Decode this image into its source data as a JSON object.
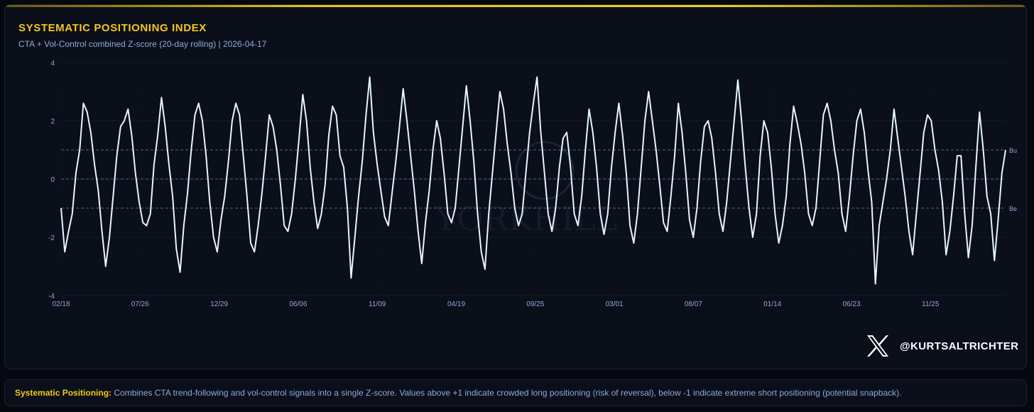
{
  "header": {
    "title": "SYSTEMATIC POSITIONING INDEX",
    "subtitle": "CTA + Vol-Control combined Z-score (20-day rolling) | 2026-04-17"
  },
  "watermark": {
    "text": "YORKHILL"
  },
  "branding": {
    "icon": "x-logo-icon",
    "handle": "@KURTSALTRICHTER"
  },
  "footer": {
    "label": "Systematic Positioning:",
    "text": " Combines CTA trend-following and vol-control signals into a single Z-score. Values above +1 indicate crowded long positioning (risk of reversal), below -1 indicate extreme short positioning (potential snapback)."
  },
  "colors": {
    "accent": "#f4c81c",
    "line": "#e6f6ff",
    "label": "#8fa8de",
    "reference": "#4e6890"
  },
  "chart_data": {
    "type": "line",
    "title": "SYSTEMATIC POSITIONING INDEX",
    "subtitle": "CTA + Vol-Control combined Z-score (20-day rolling) | 2026-04-17",
    "ylim": [
      -4,
      4
    ],
    "yticks": [
      4,
      2,
      0,
      -2,
      -4
    ],
    "xtick_labels": [
      "02/18",
      "07/26",
      "12/29",
      "06/06",
      "11/09",
      "04/19",
      "09/25",
      "03/01",
      "08/07",
      "01/14",
      "06/23",
      "11/25"
    ],
    "grid": true,
    "reference_lines": [
      {
        "value": 1,
        "label": "Bu"
      },
      {
        "value": 0,
        "label": ""
      },
      {
        "value": -1,
        "label": "Be"
      }
    ],
    "series": [
      {
        "values": [
          -1.0,
          -2.5,
          -1.8,
          -1.2,
          0.2,
          1.0,
          2.6,
          2.3,
          1.6,
          0.5,
          -0.4,
          -1.8,
          -3.0,
          -2.0,
          -0.6,
          0.8,
          1.8,
          2.0,
          2.4,
          1.5,
          0.2,
          -0.8,
          -1.5,
          -1.6,
          -1.2,
          0.5,
          1.5,
          2.8,
          1.8,
          0.5,
          -0.6,
          -2.4,
          -3.2,
          -1.6,
          -0.5,
          1.0,
          2.2,
          2.6,
          2.0,
          0.8,
          -0.8,
          -2.0,
          -2.5,
          -1.4,
          -0.6,
          0.6,
          2.0,
          2.6,
          2.2,
          0.8,
          -0.6,
          -2.2,
          -2.5,
          -1.6,
          -0.5,
          0.8,
          2.2,
          1.8,
          1.0,
          -0.2,
          -1.6,
          -1.8,
          -1.2,
          0.0,
          1.4,
          2.9,
          2.0,
          0.4,
          -0.8,
          -1.7,
          -1.2,
          -0.2,
          1.5,
          2.5,
          2.2,
          0.8,
          0.4,
          -1.0,
          -3.4,
          -2.0,
          -0.6,
          0.6,
          2.2,
          3.5,
          1.6,
          0.5,
          -0.4,
          -1.3,
          -1.6,
          -0.5,
          0.6,
          1.8,
          3.1,
          2.0,
          0.8,
          -0.4,
          -1.8,
          -2.9,
          -1.5,
          -0.4,
          1.0,
          2.0,
          1.4,
          0.2,
          -1.2,
          -1.5,
          -1.0,
          0.4,
          1.8,
          3.2,
          2.0,
          0.6,
          -1.2,
          -2.5,
          -3.1,
          -1.2,
          0.2,
          1.6,
          3.0,
          2.4,
          1.2,
          0.2,
          -1.0,
          -1.6,
          -1.2,
          0.2,
          1.6,
          2.6,
          3.5,
          1.6,
          0.2,
          -1.2,
          -1.8,
          -1.0,
          0.4,
          1.4,
          1.6,
          0.4,
          -1.2,
          -1.6,
          -0.6,
          1.0,
          2.4,
          1.6,
          0.4,
          -1.2,
          -1.9,
          -1.2,
          0.4,
          1.6,
          2.6,
          1.5,
          0.2,
          -1.6,
          -2.2,
          -1.2,
          0.4,
          2.0,
          3.0,
          2.0,
          1.0,
          -0.2,
          -1.5,
          -1.8,
          -0.6,
          0.8,
          2.6,
          1.6,
          0.2,
          -1.4,
          -2.0,
          -1.0,
          0.6,
          1.8,
          2.0,
          1.4,
          0.2,
          -1.2,
          -1.8,
          -0.8,
          0.6,
          2.0,
          3.4,
          2.0,
          0.4,
          -1.0,
          -2.0,
          -1.2,
          0.8,
          2.0,
          1.6,
          0.4,
          -1.2,
          -2.2,
          -1.6,
          -0.6,
          1.2,
          2.5,
          1.9,
          1.2,
          0.2,
          -1.2,
          -1.6,
          -1.0,
          0.6,
          2.2,
          2.6,
          2.0,
          1.0,
          0.2,
          -1.2,
          -1.8,
          -0.6,
          0.8,
          2.0,
          2.4,
          1.6,
          0.3,
          -0.8,
          -3.6,
          -1.6,
          -0.8,
          0.0,
          1.0,
          2.4,
          1.4,
          0.4,
          -0.6,
          -1.8,
          -2.6,
          -1.2,
          0.2,
          1.6,
          2.2,
          2.0,
          1.0,
          0.3,
          -0.8,
          -2.6,
          -1.8,
          -0.6,
          0.8,
          0.8,
          -1.2,
          -2.7,
          -1.6,
          0.4,
          2.3,
          1.0,
          -0.6,
          -1.2,
          -2.8,
          -1.4,
          0.2,
          1.0
        ]
      }
    ]
  }
}
